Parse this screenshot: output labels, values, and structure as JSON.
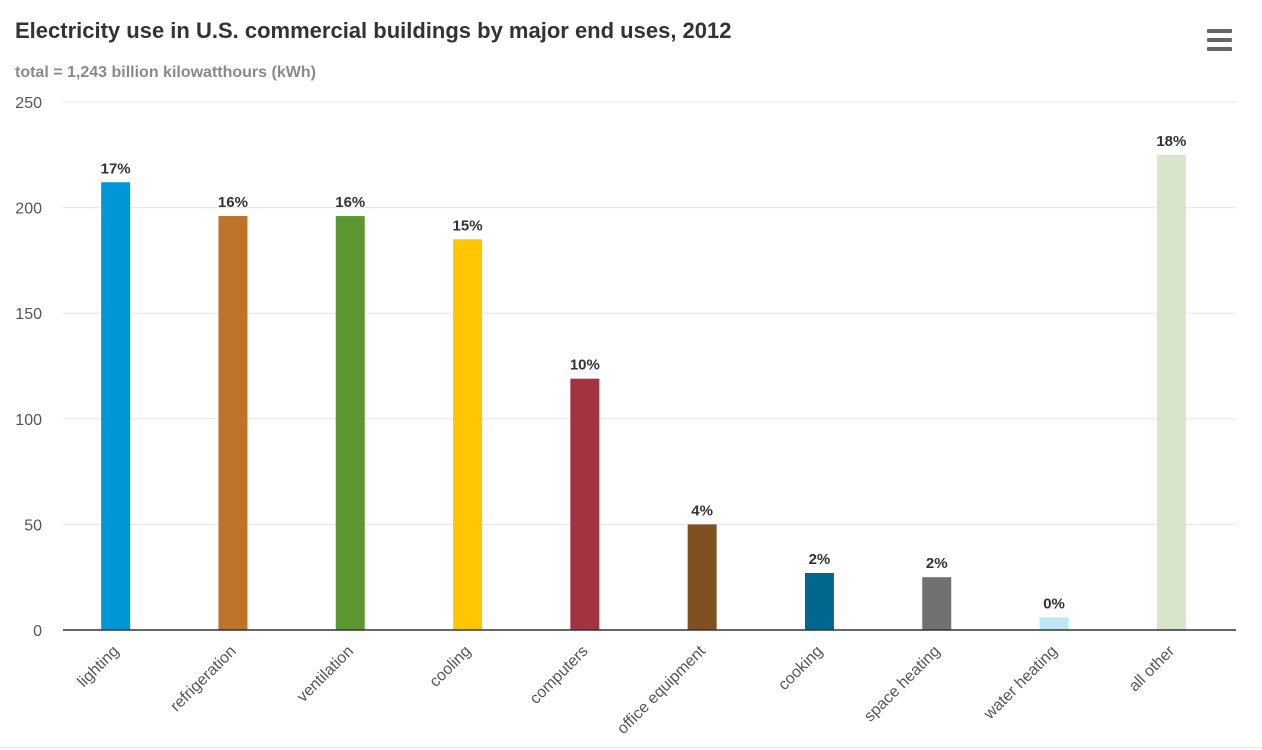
{
  "chart_data": {
    "type": "bar",
    "title": "Electricity use in U.S. commercial buildings by major end uses, 2012",
    "subtitle": "total = 1,243 billion kilowatthours (kWh)",
    "categories": [
      "lighting",
      "refrigeration",
      "ventilation",
      "cooling",
      "computers",
      "office equipment",
      "cooking",
      "space heating",
      "water heating",
      "all other"
    ],
    "values": [
      212,
      196,
      196,
      185,
      119,
      50,
      27,
      25,
      6,
      225
    ],
    "data_labels": [
      "17%",
      "16%",
      "16%",
      "15%",
      "10%",
      "4%",
      "2%",
      "2%",
      "0%",
      "18%"
    ],
    "colors": [
      "#0096d7",
      "#bd732a",
      "#5d9732",
      "#ffc702",
      "#a33340",
      "#805020",
      "#00688f",
      "#717171",
      "#bfe6f5",
      "#d8e4cc"
    ],
    "yticks": [
      "0",
      "50",
      "100",
      "150",
      "200",
      "250"
    ],
    "ylim": [
      0,
      250
    ],
    "xlabel": "",
    "ylabel": "",
    "grid": true,
    "legend": "none"
  },
  "menu": {
    "icon": "hamburger-menu-icon"
  }
}
